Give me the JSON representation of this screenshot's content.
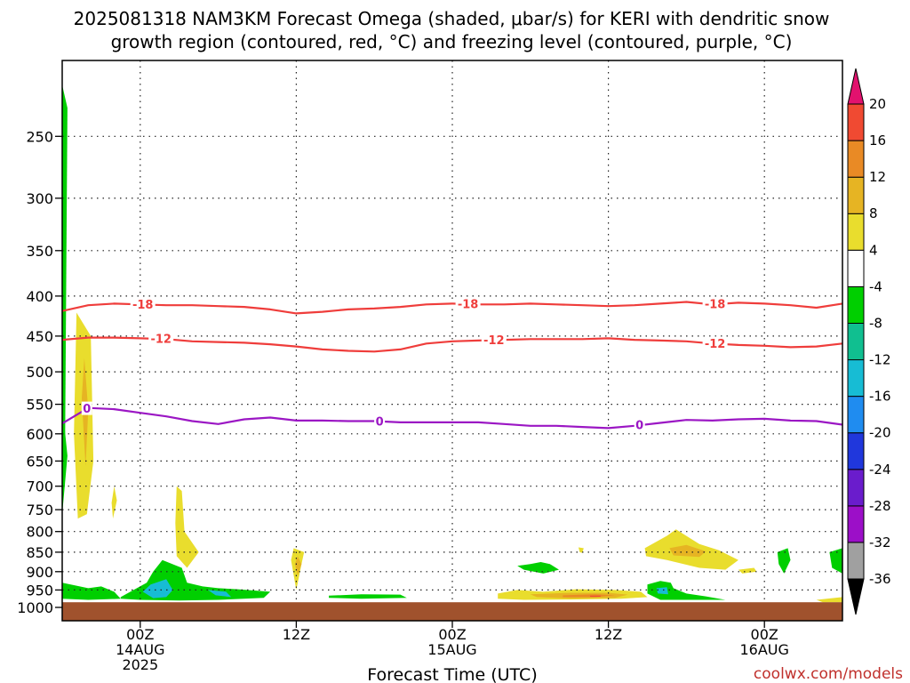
{
  "chart_data": {
    "type": "heatmap",
    "title_lines": [
      "2025081318 NAM3KM Forecast Omega (shaded, μbar/s) for KERI with dendritic snow",
      "growth region (contoured, red, °C) and freezing level (contoured, purple, °C)"
    ],
    "xlabel": "Forecast Time (UTC)",
    "credit": "coolwx.com/models",
    "x_range_hours": [
      -6,
      54
    ],
    "x_ticks": [
      {
        "hour": 0,
        "label": "00Z",
        "sub1": "14AUG",
        "sub2": "2025"
      },
      {
        "hour": 12,
        "label": "12Z",
        "sub1": "",
        "sub2": ""
      },
      {
        "hour": 24,
        "label": "00Z",
        "sub1": "15AUG",
        "sub2": ""
      },
      {
        "hour": 36,
        "label": "12Z",
        "sub1": "",
        "sub2": ""
      },
      {
        "hour": 48,
        "label": "00Z",
        "sub1": "16AUG",
        "sub2": ""
      }
    ],
    "y_ticks": [
      250,
      300,
      350,
      400,
      450,
      500,
      550,
      600,
      650,
      700,
      750,
      800,
      850,
      900,
      950,
      1000
    ],
    "y_range_hpa": [
      200,
      1040
    ],
    "surface_pressure": 985,
    "surface_color": "#a0522d",
    "colorbar": {
      "levels": [
        -36,
        -32,
        -28,
        -24,
        -20,
        -16,
        -12,
        -8,
        -4,
        4,
        8,
        12,
        16,
        20
      ],
      "colors": [
        "#a0a0a0",
        "#9c0fc8",
        "#6a1ccc",
        "#2037dc",
        "#1f8cf0",
        "#17bcd4",
        "#10bf90",
        "#00cf00",
        "#ffffff",
        "#e9dd2d",
        "#e6b423",
        "#e98a25",
        "#f04a32",
        "#e2126e"
      ]
    },
    "contours": [
      {
        "label": "-18",
        "color": "#ef3d3b",
        "hours": [
          -6,
          -4,
          -2,
          0,
          2,
          4,
          6,
          8,
          10,
          12,
          14,
          16,
          18,
          20,
          22,
          24,
          26,
          28,
          30,
          32,
          34,
          36,
          38,
          40,
          42,
          44,
          46,
          48,
          50,
          52,
          54
        ],
        "hpa": [
          418,
          411,
          409,
          410,
          411,
          411,
          412,
          413,
          416,
          421,
          419,
          416,
          415,
          413,
          410,
          409,
          410,
          410,
          409,
          410,
          411,
          412,
          411,
          409,
          407,
          410,
          408,
          409,
          411,
          414,
          409
        ],
        "label_hours": [
          0.2,
          25.2,
          44.2
        ]
      },
      {
        "label": "-12",
        "color": "#ef3d3b",
        "hours": [
          -6,
          -4,
          -2,
          0,
          2,
          4,
          6,
          8,
          10,
          12,
          14,
          16,
          18,
          20,
          22,
          24,
          26,
          28,
          30,
          32,
          34,
          36,
          38,
          40,
          42,
          44,
          46,
          48,
          50,
          52,
          54
        ],
        "hpa": [
          455,
          452,
          452,
          453,
          454,
          457,
          458,
          459,
          461,
          464,
          468,
          470,
          471,
          468,
          460,
          457,
          456,
          455,
          454,
          454,
          454,
          453,
          455,
          456,
          457,
          460,
          462,
          463,
          465,
          464,
          460
        ],
        "label_hours": [
          1.6,
          27.2,
          44.2
        ]
      },
      {
        "label": "0",
        "color": "#9b17c4",
        "hours": [
          -6,
          -4,
          -2,
          0,
          2,
          4,
          6,
          8,
          10,
          12,
          14,
          16,
          18,
          20,
          22,
          24,
          26,
          28,
          30,
          32,
          34,
          36,
          38,
          40,
          42,
          44,
          46,
          48,
          50,
          52,
          54
        ],
        "hpa": [
          582,
          556,
          558,
          564,
          570,
          578,
          583,
          575,
          572,
          577,
          577,
          578,
          578,
          580,
          580,
          580,
          580,
          583,
          586,
          586,
          588,
          590,
          586,
          581,
          576,
          577,
          575,
          574,
          577,
          578,
          584
        ],
        "label_hours": [
          -4.1,
          18.4,
          38.4
        ]
      }
    ],
    "shaded_regions": [
      {
        "value": -6,
        "hours": [
          -6.0,
          -5.6,
          -5.8,
          -6.0
        ],
        "hpa": [
          215,
          230,
          700,
          715
        ]
      },
      {
        "value": -6,
        "hours": [
          -6.0,
          -5.6,
          -6.0
        ],
        "hpa": [
          550,
          640,
          760
        ]
      },
      {
        "value": 6,
        "hours": [
          -4.9,
          -3.8,
          -3.6,
          -4.1,
          -4.8,
          -5.1
        ],
        "hpa": [
          420,
          450,
          650,
          760,
          770,
          600
        ]
      },
      {
        "value": 10,
        "hours": [
          -4.3,
          -4.0,
          -4.2,
          -4.5
        ],
        "hpa": [
          480,
          560,
          660,
          540
        ]
      },
      {
        "value": 6,
        "hours": [
          -2.0,
          -1.8,
          -2.1,
          -2.2
        ],
        "hpa": [
          700,
          730,
          770,
          735
        ]
      },
      {
        "value": 6,
        "hours": [
          2.8,
          3.2,
          3.4,
          4.5,
          3.6,
          2.8,
          2.7
        ],
        "hpa": [
          700,
          710,
          800,
          850,
          890,
          860,
          780
        ]
      },
      {
        "value": -6,
        "hours": [
          -6.0,
          -4.0,
          -3.0,
          -2.0,
          -1.5,
          -4.0,
          -6.0
        ],
        "hpa": [
          930,
          945,
          940,
          955,
          975,
          978,
          975
        ]
      },
      {
        "value": -6,
        "hours": [
          -1.5,
          0.5,
          1.0,
          1.7,
          3.2,
          3.6,
          4.8,
          6.0,
          7.5,
          10.0,
          9.5,
          6.0,
          3.0,
          0.0,
          -1.5
        ],
        "hpa": [
          970,
          930,
          900,
          870,
          890,
          930,
          940,
          945,
          948,
          955,
          972,
          978,
          980,
          978,
          975
        ]
      },
      {
        "value": -14,
        "hours": [
          0.8,
          2.0,
          2.5,
          2.0,
          1.0,
          0.2
        ],
        "hpa": [
          935,
          920,
          950,
          970,
          973,
          955
        ]
      },
      {
        "value": -14,
        "hours": [
          5.2,
          6.6,
          7.0,
          5.8
        ],
        "hpa": [
          950,
          955,
          970,
          965
        ]
      },
      {
        "value": 6,
        "hours": [
          11.8,
          12.6,
          12.4,
          12.0,
          11.6
        ],
        "hpa": [
          840,
          850,
          880,
          950,
          870
        ]
      },
      {
        "value": 10,
        "hours": [
          12.1,
          12.4,
          12.1,
          11.9
        ],
        "hpa": [
          860,
          880,
          910,
          880
        ]
      },
      {
        "value": -6,
        "hours": [
          14.5,
          17.0,
          20.0,
          20.5,
          17.0,
          14.5
        ],
        "hpa": [
          966,
          962,
          963,
          972,
          975,
          972
        ]
      },
      {
        "value": -6,
        "hours": [
          29.0,
          30.0,
          30.8,
          31.5,
          32.2,
          31.0,
          29.5
        ],
        "hpa": [
          885,
          880,
          875,
          880,
          895,
          905,
          895
        ]
      },
      {
        "value": 6,
        "hours": [
          27.5,
          29.0,
          31.0,
          33.5,
          36.5,
          38.5,
          39.0,
          37.0,
          33.0,
          29.5,
          27.5
        ],
        "hpa": [
          960,
          950,
          955,
          948,
          950,
          955,
          970,
          975,
          977,
          978,
          975
        ]
      },
      {
        "value": 10,
        "hours": [
          30.0,
          33.0,
          36.0,
          37.5,
          36.5,
          33.0,
          30.5
        ],
        "hpa": [
          962,
          958,
          958,
          963,
          972,
          974,
          970
        ]
      },
      {
        "value": 14,
        "hours": [
          32.5,
          35.0,
          36.5,
          35.0,
          32.5
        ],
        "hpa": [
          965,
          962,
          965,
          970,
          970
        ]
      },
      {
        "value": 18,
        "hours": [
          34.6,
          35.4,
          35.4,
          34.6
        ],
        "hpa": [
          966,
          966,
          969,
          969
        ]
      },
      {
        "value": 6,
        "hours": [
          33.7,
          34.1,
          34.0,
          33.8
        ],
        "hpa": [
          838,
          840,
          852,
          850
        ]
      },
      {
        "value": 6,
        "hours": [
          38.8,
          40.5,
          41.2,
          43.0,
          44.5,
          46.0,
          45.0,
          43.0,
          40.5,
          38.9
        ],
        "hpa": [
          840,
          810,
          795,
          830,
          845,
          870,
          895,
          890,
          870,
          860
        ]
      },
      {
        "value": 10,
        "hours": [
          40.7,
          42.0,
          43.5,
          43.0,
          41.0
        ],
        "hpa": [
          840,
          832,
          848,
          862,
          858
        ]
      },
      {
        "value": 6,
        "hours": [
          46.0,
          47.2,
          47.4,
          46.3
        ],
        "hpa": [
          895,
          890,
          900,
          905
        ]
      },
      {
        "value": -6,
        "hours": [
          39.0,
          40.0,
          40.8,
          41.0,
          42.0,
          43.5,
          45.0,
          42.0,
          40.0,
          39.0
        ],
        "hpa": [
          935,
          925,
          930,
          945,
          960,
          968,
          978,
          978,
          978,
          960
        ]
      },
      {
        "value": -14,
        "hours": [
          39.7,
          40.5,
          40.6,
          39.8
        ],
        "hpa": [
          945,
          942,
          962,
          960
        ]
      },
      {
        "value": -6,
        "hours": [
          49.0,
          49.8,
          50.0,
          49.5,
          49.1
        ],
        "hpa": [
          850,
          840,
          870,
          905,
          880
        ]
      },
      {
        "value": -6,
        "hours": [
          53.0,
          54.0,
          54.0,
          53.2
        ],
        "hpa": [
          850,
          840,
          905,
          890
        ]
      },
      {
        "value": 6,
        "hours": [
          52.0,
          54.0,
          54.0,
          52.5
        ],
        "hpa": [
          978,
          970,
          985,
          985
        ]
      }
    ]
  }
}
